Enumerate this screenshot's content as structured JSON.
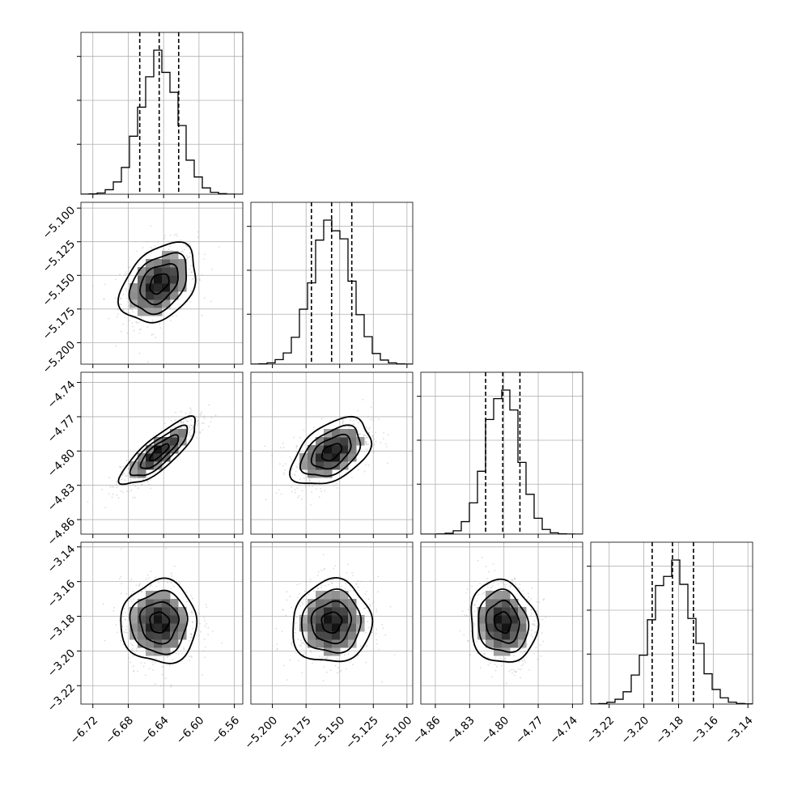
{
  "chart_data": {
    "type": "corner",
    "parameters": [
      {
        "index": 0,
        "median": -6.645,
        "q16": -6.667,
        "q84": -6.623,
        "sigma": 0.0215,
        "range": [
          -6.7335,
          -6.5505
        ],
        "ticks": [
          "-6.72",
          "-6.68",
          "-6.64",
          "-6.60",
          "-6.56"
        ]
      },
      {
        "index": 1,
        "median": -5.156,
        "q16": -5.171,
        "q84": -5.141,
        "sigma": 0.0147,
        "range": [
          -5.216,
          -5.0957
        ],
        "ticks": [
          "-5.200",
          "-5.175",
          "-5.150",
          "-5.125",
          "-5.100"
        ]
      },
      {
        "index": 2,
        "median": -4.801,
        "q16": -4.816,
        "q84": -4.786,
        "sigma": 0.0146,
        "range": [
          -4.8727,
          -4.7311
        ],
        "ticks": [
          "-4.86",
          "-4.83",
          "-4.80",
          "-4.77",
          "-4.74"
        ]
      },
      {
        "index": 3,
        "median": -3.1835,
        "q16": -3.1952,
        "q84": -3.1714,
        "sigma": 0.0119,
        "range": [
          -3.2306,
          -3.1373
        ],
        "ticks": [
          "-3.22",
          "-3.20",
          "-3.18",
          "-3.16",
          "-3.14"
        ]
      }
    ],
    "pairs": [
      {
        "row": 1,
        "col": 0,
        "correlation": 0.35
      },
      {
        "row": 2,
        "col": 0,
        "correlation": 0.82
      },
      {
        "row": 2,
        "col": 1,
        "correlation": 0.45
      },
      {
        "row": 3,
        "col": 0,
        "correlation": 0.0
      },
      {
        "row": 3,
        "col": 1,
        "correlation": 0.05
      },
      {
        "row": 3,
        "col": 2,
        "correlation": -0.1
      }
    ],
    "contour_levels_sigma": [
      0.5,
      1.0,
      1.5,
      2.0
    ],
    "quantile_lines": [
      "0.16",
      "0.50",
      "0.84"
    ],
    "grid": true,
    "xlabel": "",
    "ylabel": "",
    "title": ""
  }
}
